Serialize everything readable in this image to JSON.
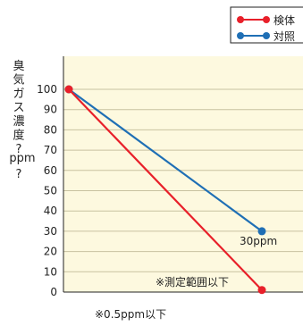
{
  "chart_data": {
    "type": "line",
    "x": [
      0,
      1
    ],
    "series": [
      {
        "name": "検体",
        "values": [
          100,
          1
        ],
        "color": "#e8202a"
      },
      {
        "name": "対照",
        "values": [
          100,
          30
        ],
        "color": "#1f6fb5"
      }
    ],
    "ylabel_chars": [
      "臭",
      "気",
      "ガ",
      "ス",
      "濃",
      "度",
      "?"
    ],
    "ylabel_unit": "ppm",
    "ylabel_tail": "?",
    "ylim": [
      0,
      110
    ],
    "yticks": [
      "0",
      "10",
      "20",
      "30",
      "40",
      "50",
      "60",
      "70",
      "80",
      "90",
      "100"
    ],
    "grid": true,
    "legend_position": "top-right",
    "annotations": {
      "control_end": "30ppm",
      "sample_end": "※測定範囲以下"
    },
    "footnote": "※0.5ppm以下",
    "colors": {
      "plot_background": "#fdf9df",
      "gridline": "#c8c2a0"
    }
  }
}
